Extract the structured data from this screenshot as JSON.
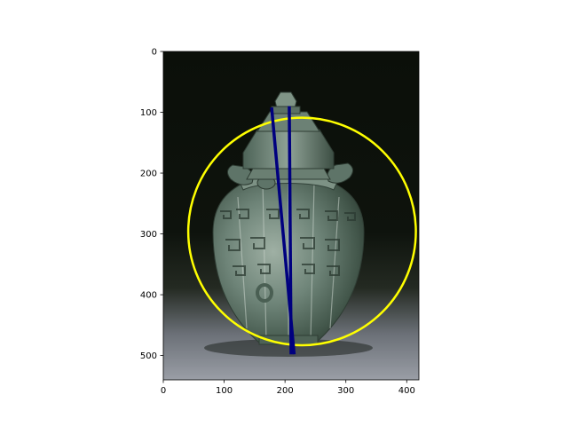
{
  "figure": {
    "background": "#ffffff",
    "image": {
      "subject": "ancient bronze ritual vessel (hu) with lid, taotie and meander decoration, green patina",
      "backdrop_colors": [
        "#0b0f09",
        "#242a22",
        "#9a9ea6"
      ]
    },
    "axes": {
      "x_ticks": [
        "0",
        "100",
        "200",
        "300",
        "400"
      ],
      "y_ticks": [
        "0",
        "100",
        "200",
        "300",
        "400",
        "500"
      ]
    },
    "overlays": {
      "circle_color": "#ffff00",
      "line_color": "#00007f"
    }
  },
  "chart_data": {
    "type": "image",
    "title": "",
    "xlabel": "",
    "ylabel": "",
    "xlim": [
      0,
      420
    ],
    "ylim": [
      540,
      0
    ],
    "x_ticks": [
      0,
      100,
      200,
      300,
      400
    ],
    "y_ticks": [
      0,
      100,
      200,
      300,
      400,
      500
    ],
    "image_extent": {
      "width": 420,
      "height": 540
    },
    "grid": false,
    "legend": "none",
    "overlays": [
      {
        "type": "circle",
        "color": "#ffff00",
        "center": [
          228,
          296
        ],
        "radius": 187
      },
      {
        "type": "line",
        "color": "#00007f",
        "points": [
          [
            178,
            92
          ],
          [
            215,
            498
          ]
        ]
      },
      {
        "type": "line",
        "color": "#00007f",
        "points": [
          [
            207,
            90
          ],
          [
            210,
            498
          ]
        ]
      }
    ]
  }
}
